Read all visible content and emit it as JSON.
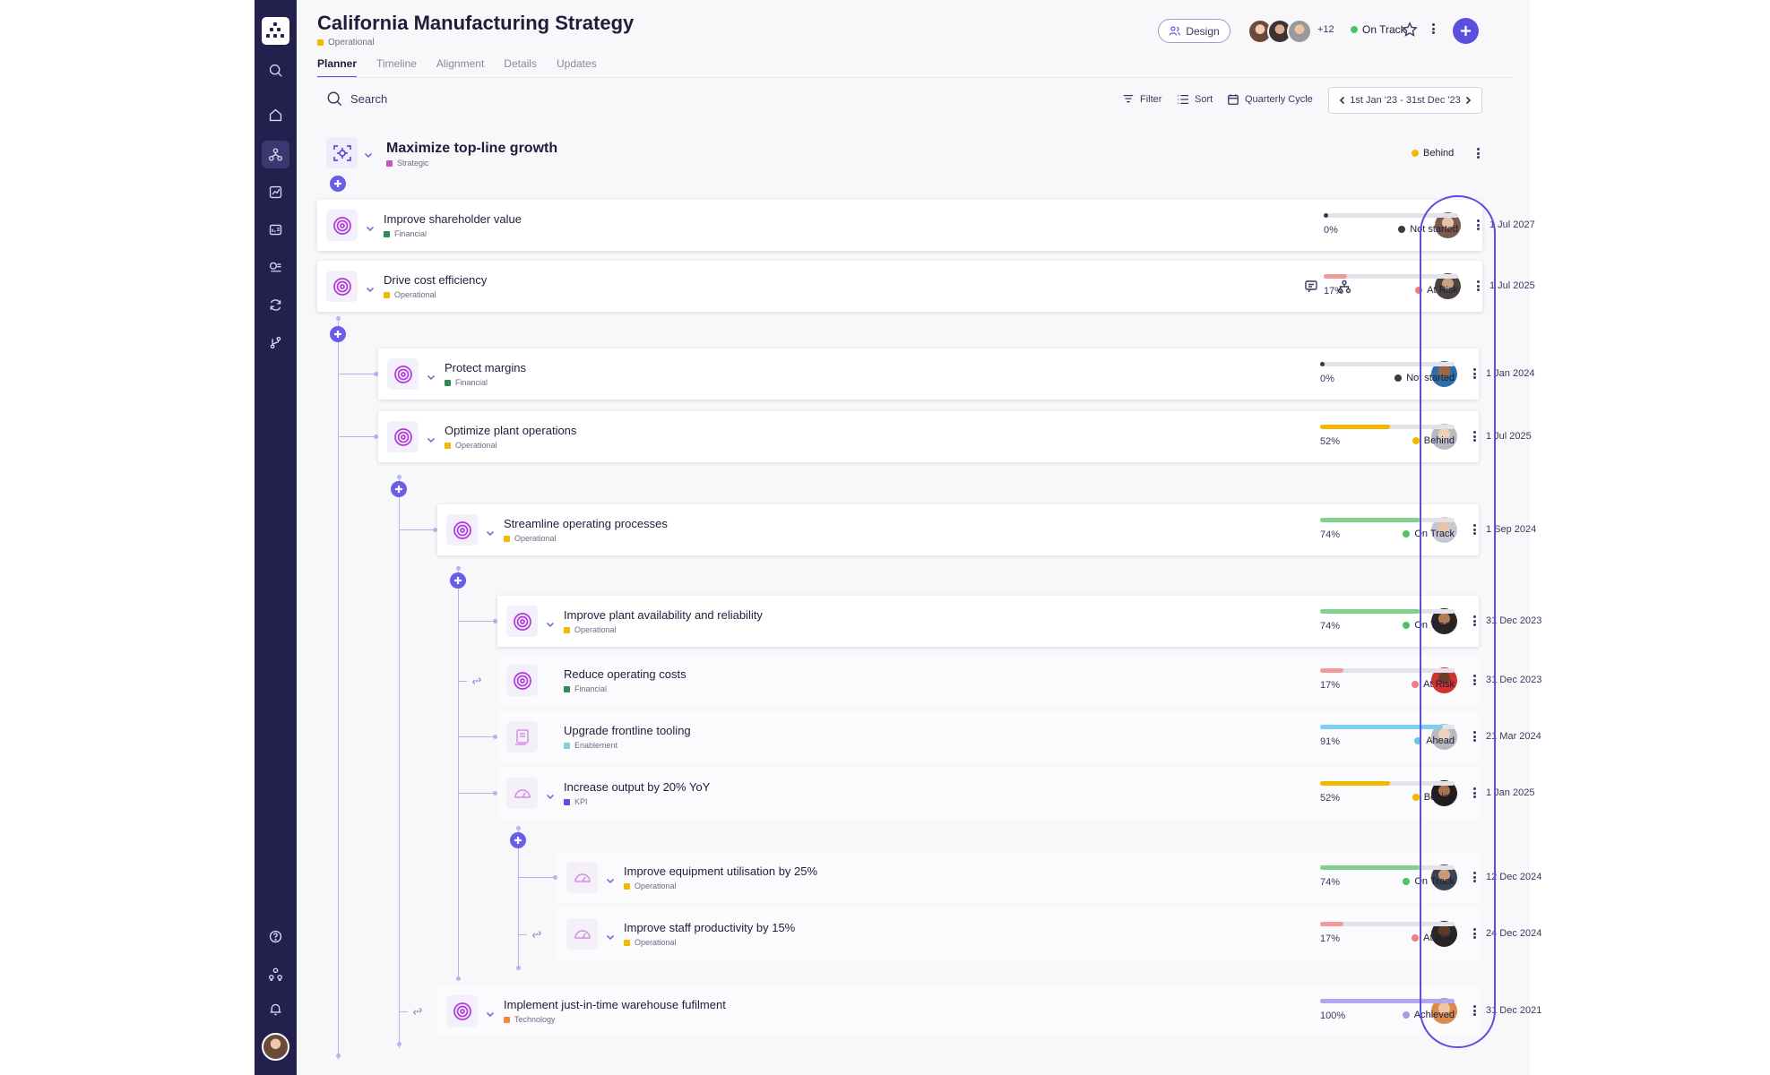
{
  "app": {
    "title": "California Manufacturing Strategy",
    "category": {
      "label": "Operational",
      "color": "#f5b700"
    },
    "tabs": [
      "Planner",
      "Timeline",
      "Alignment",
      "Details",
      "Updates"
    ],
    "active_tab": "Planner",
    "design_label": "Design",
    "extra_members": "+12",
    "status": {
      "label": "On Track",
      "color": "#4cc36a"
    }
  },
  "toolbar": {
    "search_placeholder": "Search",
    "filter_label": "Filter",
    "sort_label": "Sort",
    "cycle_label": "Quarterly Cycle",
    "date_range": "1st Jan '23 - 31st Dec '23"
  },
  "goal": {
    "name": "Maximize top-line growth",
    "tag": "Strategic",
    "tag_color": "#c455c9",
    "status": "Behind",
    "status_color": "#f5b700"
  },
  "colors": {
    "accent": "#5b4fe0",
    "sidebar": "#23204d"
  },
  "items": [
    {
      "name": "Improve shareholder value",
      "tag": "Financial",
      "tag_color": "#2e8b57",
      "due": "1 Jul 2027",
      "progress": 0,
      "progress_label": "0%",
      "status": "Not started",
      "status_color": "#3a3a45",
      "bar_color": "#3a3a45",
      "icon": "target-icon"
    },
    {
      "name": "Drive cost efficiency",
      "tag": "Operational",
      "tag_color": "#f5b700",
      "due": "1 Jul 2025",
      "progress": 17,
      "progress_label": "17%",
      "status": "At Risk",
      "status_color": "#f07c7c",
      "bar_color": "#f09a9a",
      "icon": "target-icon"
    },
    {
      "name": "Protect margins",
      "tag": "Financial",
      "tag_color": "#2e8b57",
      "due": "1 Jan 2024",
      "progress": 0,
      "progress_label": "0%",
      "status": "Not started",
      "status_color": "#3a3a45",
      "bar_color": "#3a3a45",
      "icon": "target-icon"
    },
    {
      "name": "Optimize plant operations",
      "tag": "Operational",
      "tag_color": "#f5b700",
      "due": "1 Jul 2025",
      "progress": 52,
      "progress_label": "52%",
      "status": "Behind",
      "status_color": "#f5b700",
      "bar_color": "#f5b700",
      "icon": "target-icon"
    },
    {
      "name": "Streamline operating processes",
      "tag": "Operational",
      "tag_color": "#f5b700",
      "due": "1 Sep 2024",
      "progress": 74,
      "progress_label": "74%",
      "status": "On Track",
      "status_color": "#4cc36a",
      "bar_color": "#7fd18c",
      "icon": "target-icon"
    },
    {
      "name": "Improve plant availability and reliability",
      "tag": "Operational",
      "tag_color": "#f5b700",
      "due": "31 Dec 2023",
      "progress": 74,
      "progress_label": "74%",
      "status": "On Track",
      "status_color": "#4cc36a",
      "bar_color": "#7fd18c",
      "icon": "target-icon"
    },
    {
      "name": "Reduce operating costs",
      "tag": "Financial",
      "tag_color": "#2e8b57",
      "due": "31 Dec 2023",
      "progress": 17,
      "progress_label": "17%",
      "status": "At Risk",
      "status_color": "#f07c7c",
      "bar_color": "#f09a9a",
      "icon": "target-icon"
    },
    {
      "name": "Upgrade frontline tooling",
      "tag": "Enablement",
      "tag_color": "#7fd3d8",
      "due": "21 Mar 2024",
      "progress": 91,
      "progress_label": "91%",
      "status": "Ahead",
      "status_color": "#6cc6ea",
      "bar_color": "#7fcdf0",
      "icon": "document-icon"
    },
    {
      "name": "Increase output by 20% YoY",
      "tag": "KPI",
      "tag_color": "#5b4fe0",
      "due": "1 Jan 2025",
      "progress": 52,
      "progress_label": "52%",
      "status": "Behind",
      "status_color": "#f5b700",
      "bar_color": "#f5b700",
      "icon": "gauge-icon"
    },
    {
      "name": "Improve equipment utilisation by 25%",
      "tag": "Operational",
      "tag_color": "#f5b700",
      "due": "12 Dec 2024",
      "progress": 74,
      "progress_label": "74%",
      "status": "On Track",
      "status_color": "#4cc36a",
      "bar_color": "#7fd18c",
      "icon": "gauge-icon"
    },
    {
      "name": "Improve staff productivity by 15%",
      "tag": "Operational",
      "tag_color": "#f5b700",
      "due": "24 Dec 2024",
      "progress": 17,
      "progress_label": "17%",
      "status": "At Risk",
      "status_color": "#f07c7c",
      "bar_color": "#f09a9a",
      "icon": "gauge-icon"
    },
    {
      "name": "Implement just-in-time warehouse fufilment",
      "tag": "Technology",
      "tag_color": "#f08a3c",
      "due": "31 Dec 2021",
      "progress": 100,
      "progress_label": "100%",
      "status": "Achieved",
      "status_color": "#a89be8",
      "bar_color": "#b3a6f0",
      "icon": "target-icon"
    }
  ]
}
